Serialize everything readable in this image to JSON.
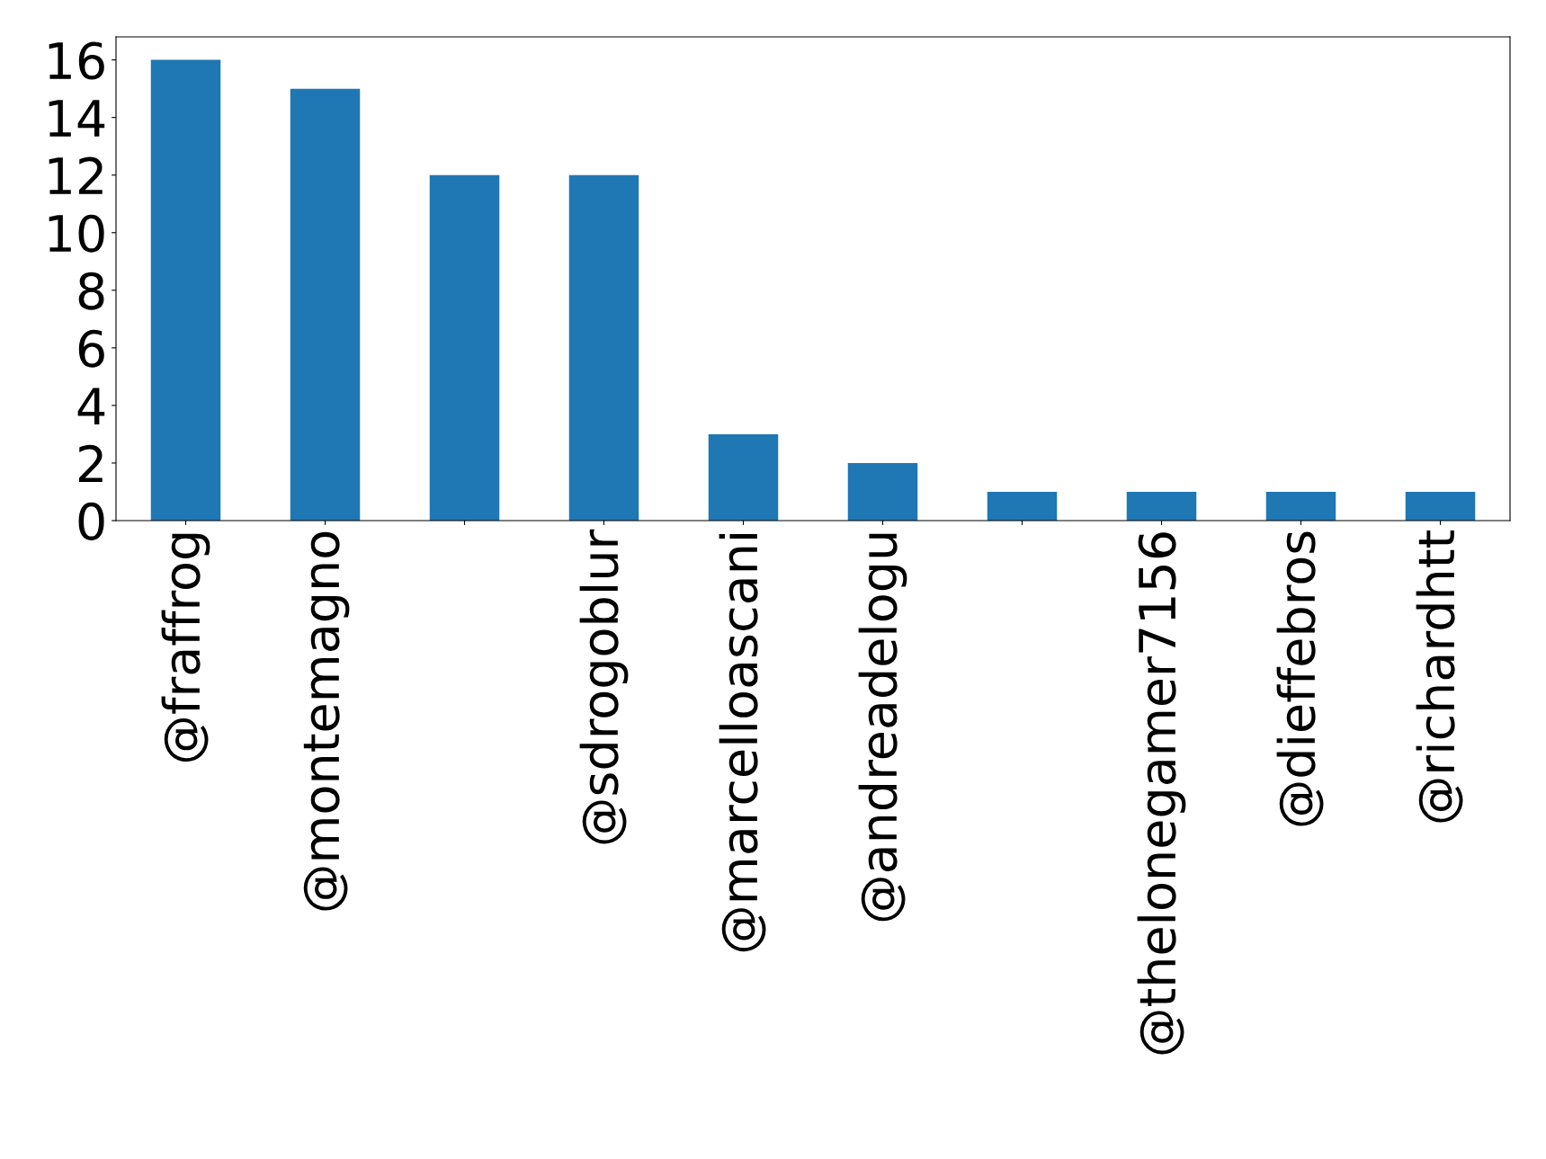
{
  "chart_data": {
    "type": "bar",
    "categories": [
      "@fraffrog",
      "@montemagno",
      null,
      "@sdrogoblur",
      "@marcelloascani",
      "@andreadelogu",
      null,
      "@thelonegamer7156",
      "@dieffebros",
      "@richardhtt"
    ],
    "values": [
      16,
      15,
      12,
      12,
      3,
      2,
      1,
      1,
      1,
      1
    ],
    "color": "#1f77b4",
    "ylim": [
      0,
      16.8
    ],
    "yticks": [
      0,
      2,
      4,
      6,
      8,
      10,
      12,
      14,
      16
    ],
    "grid": false,
    "legend": false
  }
}
